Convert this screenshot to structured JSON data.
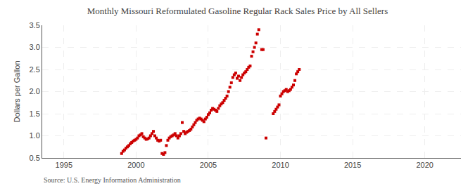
{
  "chart_data": {
    "type": "scatter",
    "title": "Monthly Missouri Reformulated Gasoline Regular Rack Sales Price by All Sellers",
    "ylabel": "Dollars per Gallon",
    "annotations": [
      "Source: U.S. Energy Information Administration"
    ],
    "color": "#cc0000",
    "marker": "square",
    "grid": true,
    "xlim": [
      1993.5,
      2022.5
    ],
    "ylim": [
      0.5,
      3.5
    ],
    "xticks": [
      1995,
      2000,
      2005,
      2010,
      2015,
      2020
    ],
    "yticks": [
      0.5,
      {
        "value": 1.0,
        "label": "1.0"
      },
      1.5,
      {
        "value": 2.0,
        "label": "2.0"
      },
      2.5,
      {
        "value": 3.0,
        "label": "3.0"
      },
      3.5
    ],
    "x": [
      1999.0,
      1999.1,
      1999.2,
      1999.3,
      1999.4,
      1999.5,
      1999.6,
      1999.7,
      1999.8,
      1999.9,
      2000.0,
      2000.1,
      2000.2,
      2000.3,
      2000.4,
      2000.5,
      2000.6,
      2000.7,
      2000.8,
      2000.9,
      2001.0,
      2001.1,
      2001.2,
      2001.3,
      2001.4,
      2001.5,
      2001.6,
      2001.7,
      2001.8,
      2001.9,
      2002.0,
      2002.1,
      2002.2,
      2002.3,
      2002.4,
      2002.5,
      2002.6,
      2002.7,
      2002.8,
      2002.9,
      2003.0,
      2003.1,
      2003.2,
      2003.3,
      2003.4,
      2003.5,
      2003.6,
      2003.7,
      2003.8,
      2003.9,
      2004.0,
      2004.1,
      2004.2,
      2004.3,
      2004.4,
      2004.5,
      2004.6,
      2004.7,
      2004.8,
      2004.9,
      2005.0,
      2005.1,
      2005.2,
      2005.3,
      2005.4,
      2005.5,
      2005.6,
      2005.7,
      2005.8,
      2005.9,
      2006.0,
      2006.1,
      2006.2,
      2006.3,
      2006.4,
      2006.5,
      2006.6,
      2006.7,
      2006.8,
      2006.9,
      2007.0,
      2007.1,
      2007.2,
      2007.3,
      2007.4,
      2007.5,
      2007.6,
      2007.7,
      2007.8,
      2007.9,
      2008.0,
      2008.1,
      2008.2,
      2008.3,
      2008.4,
      2008.5,
      2008.7,
      2008.8,
      2009.0,
      2009.5,
      2009.6,
      2009.7,
      2009.8,
      2009.9,
      2010.0,
      2010.1,
      2010.2,
      2010.3,
      2010.4,
      2010.5,
      2010.6,
      2010.7,
      2010.8,
      2010.9,
      2011.0,
      2011.1,
      2011.2,
      2011.3
    ],
    "values": [
      0.6,
      0.65,
      0.68,
      0.72,
      0.75,
      0.78,
      0.82,
      0.85,
      0.88,
      0.9,
      0.92,
      0.95,
      1.0,
      1.02,
      1.05,
      0.98,
      0.95,
      0.92,
      0.93,
      0.95,
      1.0,
      1.05,
      1.1,
      1.0,
      0.95,
      0.9,
      0.88,
      0.9,
      0.6,
      0.58,
      0.62,
      0.78,
      0.9,
      0.95,
      0.98,
      1.0,
      1.02,
      1.05,
      1.0,
      0.95,
      1.0,
      1.05,
      1.3,
      1.1,
      1.05,
      1.08,
      1.1,
      1.12,
      1.15,
      1.2,
      1.25,
      1.3,
      1.35,
      1.38,
      1.4,
      1.38,
      1.35,
      1.32,
      1.38,
      1.42,
      1.48,
      1.52,
      1.58,
      1.62,
      1.6,
      1.58,
      1.55,
      1.62,
      1.68,
      1.72,
      1.75,
      1.8,
      1.85,
      1.9,
      2.0,
      2.1,
      2.2,
      2.32,
      2.38,
      2.42,
      2.3,
      2.35,
      2.25,
      2.32,
      2.38,
      2.42,
      2.45,
      2.5,
      2.55,
      2.58,
      2.8,
      2.9,
      3.0,
      3.1,
      3.3,
      3.4,
      2.95,
      2.95,
      0.95,
      1.5,
      1.55,
      1.6,
      1.65,
      1.7,
      1.9,
      1.95,
      2.0,
      2.02,
      2.05,
      2.0,
      2.02,
      2.05,
      2.1,
      2.15,
      2.25,
      2.4,
      2.45,
      2.5
    ]
  }
}
